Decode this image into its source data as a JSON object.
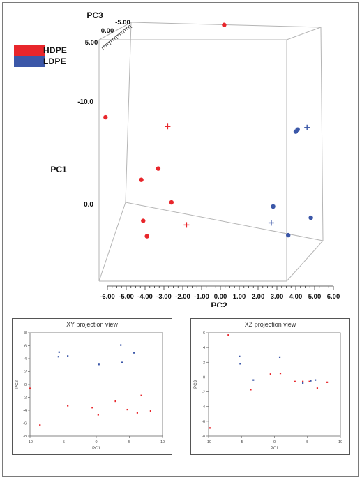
{
  "legend": {
    "items": [
      {
        "label": "HDPE",
        "color": "#e8262b"
      },
      {
        "label": "LDPE",
        "color": "#3b57a8"
      }
    ]
  },
  "colors": {
    "hdpe": "#e8262b",
    "ldpe": "#3b57a8",
    "box": "#b5b5b5"
  },
  "chart_data": [
    {
      "type": "scatter",
      "title": "",
      "projection": "3d",
      "axes": {
        "x": {
          "label": "PC2",
          "ticks": [
            "6.00",
            "5.00",
            "4.00",
            "3.00",
            "2.00",
            "1.00",
            "0.00",
            "-1.00",
            "-2.00",
            "-3.00",
            "-4.00",
            "-5.00",
            "-6.00"
          ]
        },
        "y": {
          "label": "PC1",
          "ticks": [
            "-10.0",
            "0.0"
          ]
        },
        "z": {
          "label": "PC3",
          "ticks": [
            "-5.00",
            "0.00",
            "5.00"
          ]
        }
      },
      "grid": false,
      "legend_position": "top-left",
      "series": [
        {
          "name": "HDPE",
          "color": "#e8262b",
          "points": [
            {
              "pc2": 0.2,
              "pc1": -17.5,
              "marker": "dot"
            },
            {
              "pc2": -6.1,
              "pc1": -8.5,
              "marker": "dot"
            },
            {
              "pc2": -2.8,
              "pc1": -7.6,
              "marker": "plus"
            },
            {
              "pc2": -3.3,
              "pc1": -3.5,
              "marker": "dot"
            },
            {
              "pc2": -4.2,
              "pc1": -2.4,
              "marker": "dot"
            },
            {
              "pc2": -2.6,
              "pc1": -0.2,
              "marker": "dot"
            },
            {
              "pc2": -4.1,
              "pc1": 1.6,
              "marker": "dot"
            },
            {
              "pc2": -1.8,
              "pc1": 2.0,
              "marker": "plus"
            },
            {
              "pc2": -3.9,
              "pc1": 3.1,
              "marker": "dot"
            }
          ]
        },
        {
          "name": "LDPE",
          "color": "#3b57a8",
          "points": [
            {
              "pc2": 4.0,
              "pc1": -7.1,
              "marker": "dot"
            },
            {
              "pc2": 4.1,
              "pc1": -7.3,
              "marker": "dot"
            },
            {
              "pc2": 4.6,
              "pc1": -7.5,
              "marker": "plus"
            },
            {
              "pc2": 2.8,
              "pc1": 0.2,
              "marker": "dot"
            },
            {
              "pc2": 2.7,
              "pc1": 1.8,
              "marker": "plus"
            },
            {
              "pc2": 3.6,
              "pc1": 3.0,
              "marker": "dot"
            },
            {
              "pc2": 4.8,
              "pc1": 1.3,
              "marker": "dot"
            }
          ]
        }
      ]
    },
    {
      "type": "scatter",
      "title": "XY projection view",
      "xlabel": "PC1",
      "ylabel": "PC2",
      "xlim": [
        -10,
        10
      ],
      "ylim": [
        -8,
        8
      ],
      "xticks": [
        "-10",
        "-5",
        "0",
        "5",
        "10"
      ],
      "yticks": [
        "8",
        "6",
        "4",
        "2",
        "0",
        "-2",
        "-4",
        "-6",
        "-8"
      ],
      "series": [
        {
          "name": "HDPE",
          "color": "#e8262b",
          "points": [
            [
              -10.0,
              -0.6
            ],
            [
              -8.5,
              -6.3
            ],
            [
              -4.3,
              -3.3
            ],
            [
              -0.6,
              -3.6
            ],
            [
              0.3,
              -4.7
            ],
            [
              2.9,
              -2.6
            ],
            [
              4.7,
              -3.9
            ],
            [
              6.2,
              -4.4
            ],
            [
              6.8,
              -1.7
            ],
            [
              8.2,
              -4.1
            ]
          ]
        },
        {
          "name": "LDPE",
          "color": "#3b57a8",
          "points": [
            [
              -5.6,
              5.0
            ],
            [
              -5.7,
              4.3
            ],
            [
              -4.3,
              4.4
            ],
            [
              0.4,
              3.1
            ],
            [
              3.7,
              6.1
            ],
            [
              3.9,
              3.4
            ],
            [
              5.7,
              4.9
            ]
          ]
        }
      ]
    },
    {
      "type": "scatter",
      "title": "XZ projection view",
      "xlabel": "PC1",
      "ylabel": "PC3",
      "xlim": [
        -10,
        10
      ],
      "ylim": [
        -8,
        6
      ],
      "xticks": [
        "-10",
        "-5",
        "0",
        "5",
        "10"
      ],
      "yticks": [
        "6",
        "4",
        "2",
        "0",
        "-2",
        "-4",
        "-6",
        "-8"
      ],
      "series": [
        {
          "name": "HDPE",
          "color": "#e8262b",
          "points": [
            [
              -9.8,
              -6.9
            ],
            [
              -7.0,
              5.7
            ],
            [
              -3.6,
              -1.7
            ],
            [
              -0.6,
              0.4
            ],
            [
              0.9,
              0.5
            ],
            [
              3.1,
              -0.6
            ],
            [
              4.3,
              -0.6
            ],
            [
              5.3,
              -0.6
            ],
            [
              6.5,
              -1.5
            ],
            [
              8.0,
              -0.7
            ]
          ]
        },
        {
          "name": "LDPE",
          "color": "#3b57a8",
          "points": [
            [
              -5.3,
              2.8
            ],
            [
              -5.2,
              1.8
            ],
            [
              -3.2,
              -0.4
            ],
            [
              0.8,
              2.7
            ],
            [
              4.3,
              -0.8
            ],
            [
              5.5,
              -0.5
            ],
            [
              6.2,
              -0.4
            ]
          ]
        }
      ]
    }
  ]
}
